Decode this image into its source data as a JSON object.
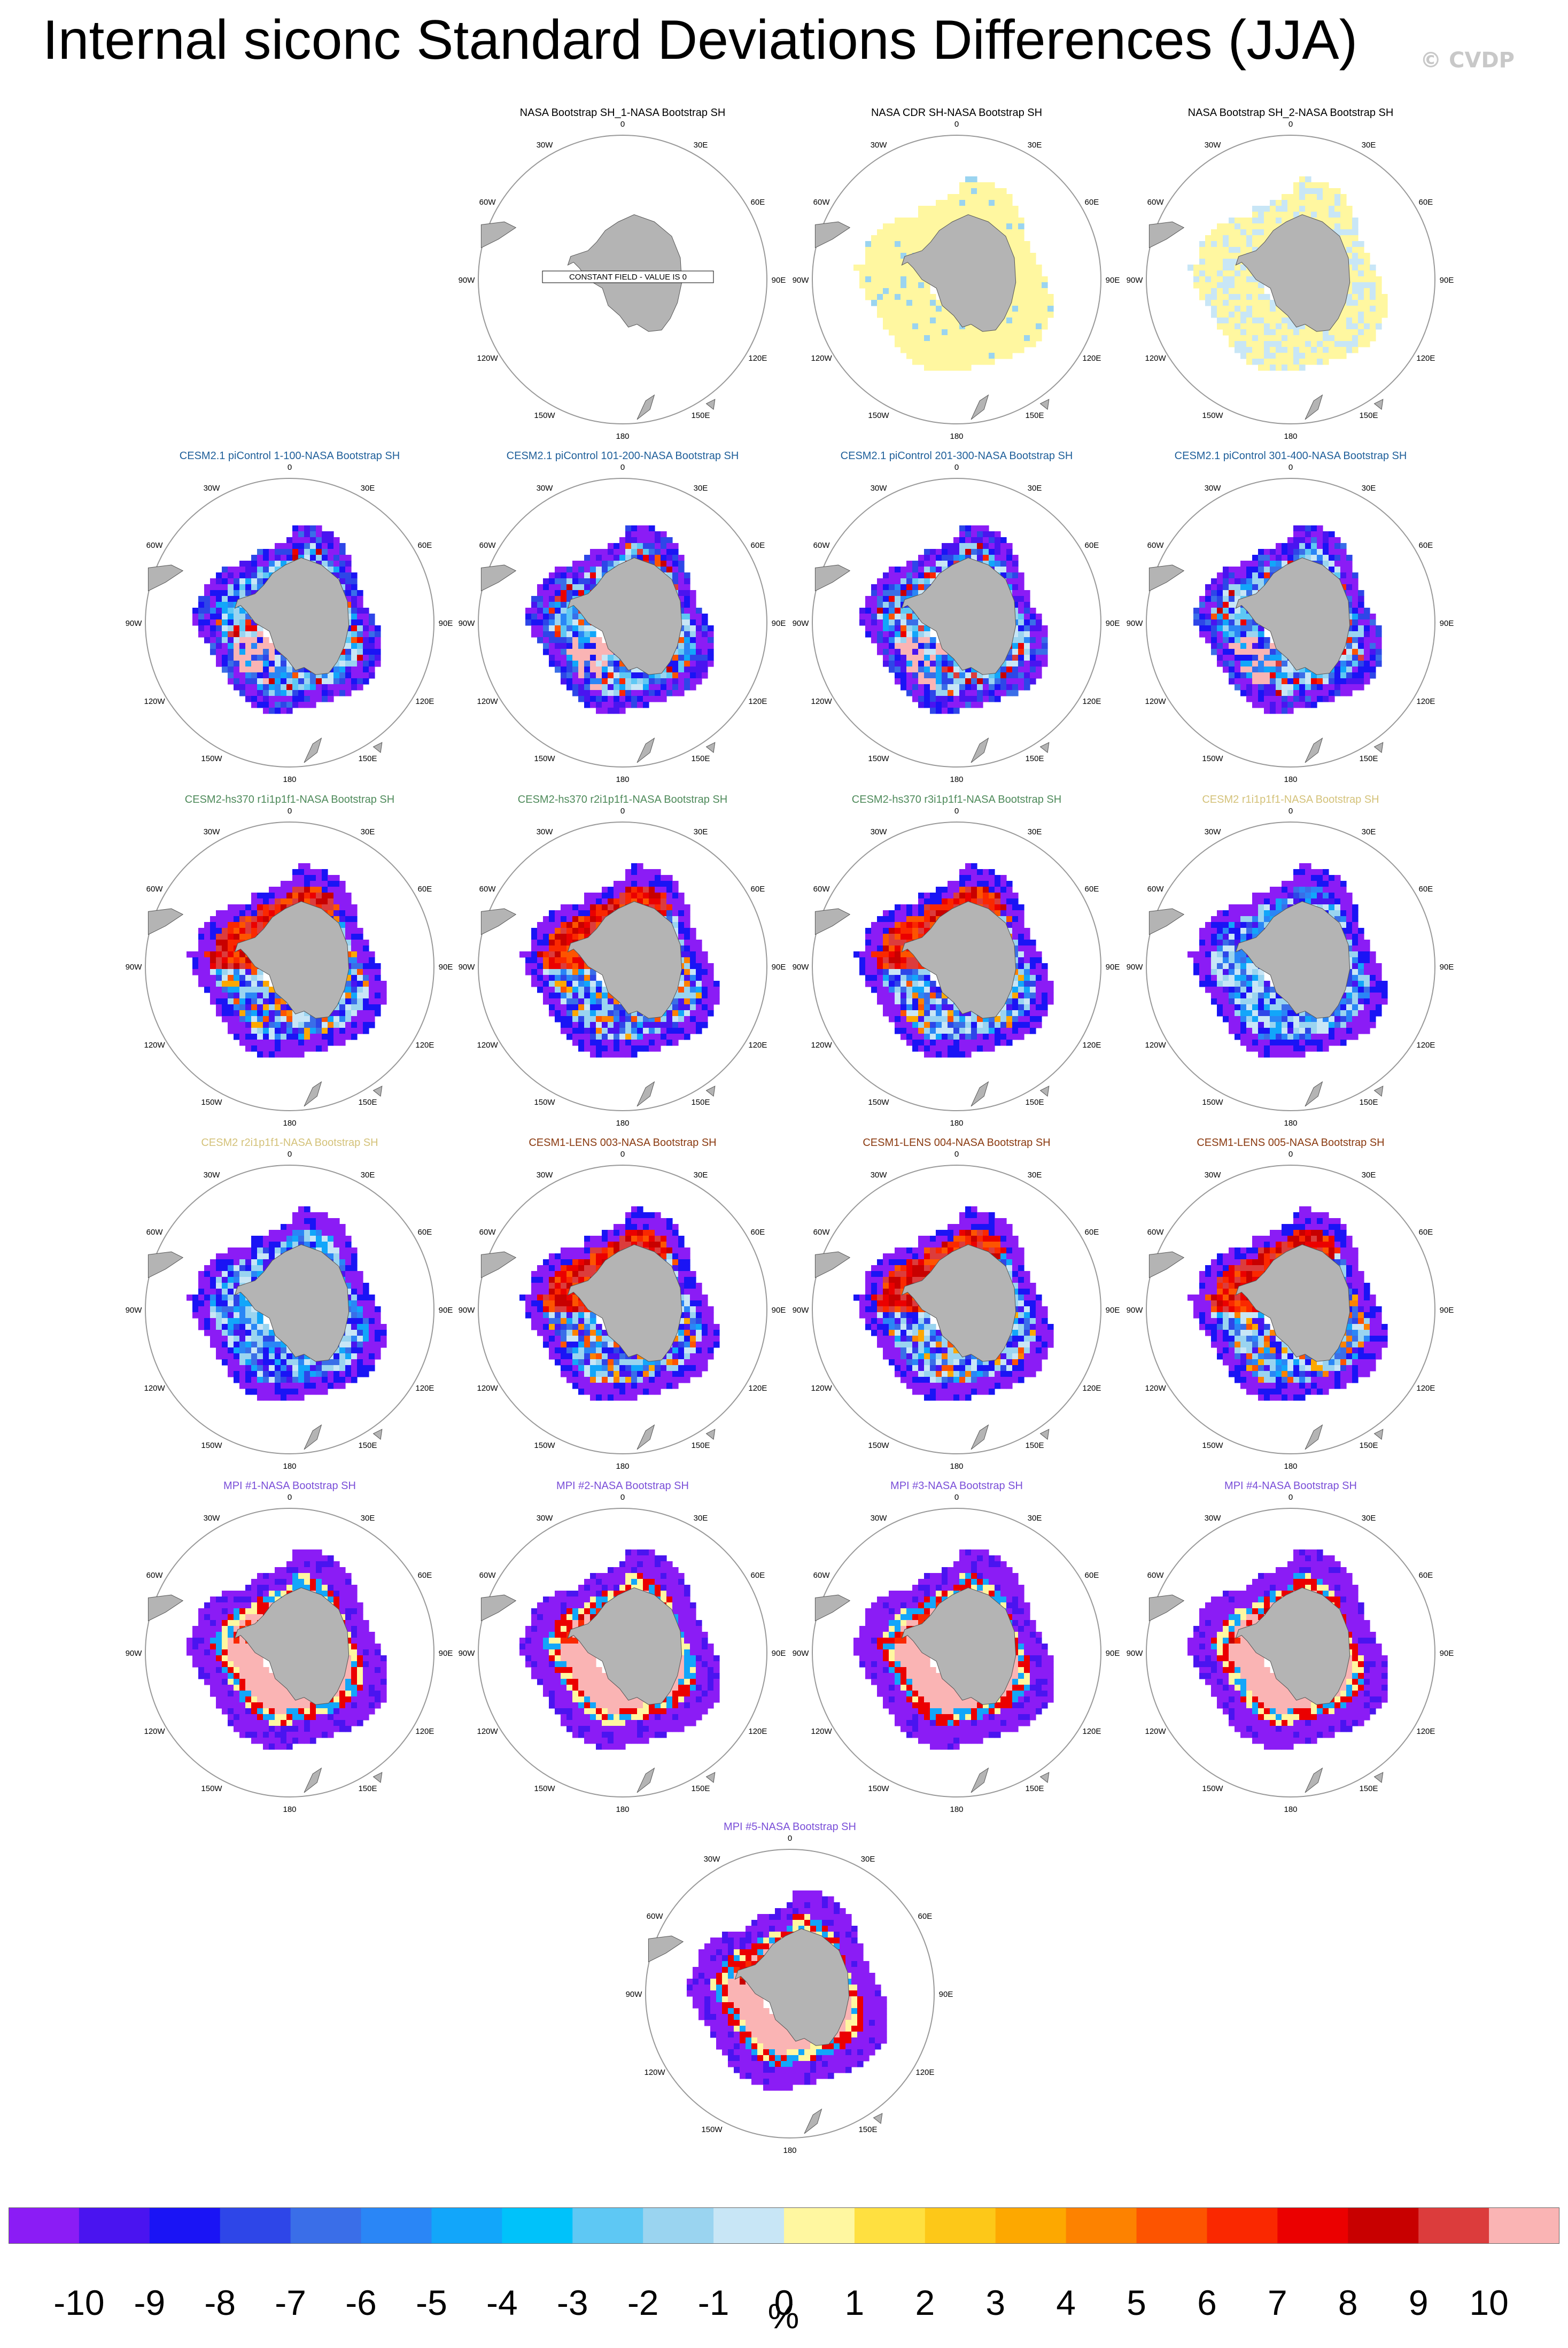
{
  "title": "Internal siconc Standard Deviations Differences (JJA)",
  "watermark": "© CVDP",
  "chart_data": {
    "type": "heatmap",
    "projection": "south-polar-stereographic",
    "season": "JJA",
    "variable": "siconc",
    "colorbar": {
      "unit": "%",
      "labels": [
        "-10",
        "-9",
        "-8",
        "-7",
        "-6",
        "-5",
        "-4",
        "-3",
        "-2",
        "-1",
        "0",
        "1",
        "2",
        "3",
        "4",
        "5",
        "6",
        "7",
        "8",
        "9",
        "10"
      ],
      "colors": [
        "#8B1CF5",
        "#4A14F0",
        "#1A14F5",
        "#2E46E8",
        "#3A6EE8",
        "#2A86F6",
        "#12A6FA",
        "#00C2FA",
        "#5EC8F4",
        "#9AD4F0",
        "#C8E6F6",
        "#FFF7A0",
        "#FFE040",
        "#FDC818",
        "#FDA800",
        "#FD8200",
        "#FD5400",
        "#FA2800",
        "#EB0000",
        "#C80000",
        "#DC3C3C",
        "#FAB4B4"
      ]
    },
    "lon_labels": [
      "0",
      "30E",
      "60E",
      "90E",
      "120E",
      "150E",
      "180",
      "150W",
      "120W",
      "90W",
      "60W",
      "30W"
    ],
    "panels": [
      {
        "title": "NASA Bootstrap SH_1-NASA Bootstrap SH",
        "title_color": "#000000",
        "note": "CONSTANT FIELD - VALUE IS 0",
        "pattern": "constant"
      },
      {
        "title": "NASA CDR SH-NASA Bootstrap SH",
        "title_color": "#000000",
        "pattern": "cdr"
      },
      {
        "title": "NASA Bootstrap SH_2-NASA Bootstrap SH",
        "title_color": "#000000",
        "pattern": "bs2"
      },
      {
        "title": "CESM2.1 piControl 1-100-NASA Bootstrap SH",
        "title_color": "#1F5F9A",
        "pattern": "pic"
      },
      {
        "title": "CESM2.1 piControl 101-200-NASA Bootstrap SH",
        "title_color": "#1F5F9A",
        "pattern": "pic"
      },
      {
        "title": "CESM2.1 piControl 201-300-NASA Bootstrap SH",
        "title_color": "#1F5F9A",
        "pattern": "pic"
      },
      {
        "title": "CESM2.1 piControl 301-400-NASA Bootstrap SH",
        "title_color": "#1F5F9A",
        "pattern": "pic"
      },
      {
        "title": "CESM2-hs370 r1i1p1f1-NASA Bootstrap SH",
        "title_color": "#4E8A5A",
        "pattern": "hs"
      },
      {
        "title": "CESM2-hs370 r2i1p1f1-NASA Bootstrap SH",
        "title_color": "#4E8A5A",
        "pattern": "hs"
      },
      {
        "title": "CESM2-hs370 r3i1p1f1-NASA Bootstrap SH",
        "title_color": "#4E8A5A",
        "pattern": "hs"
      },
      {
        "title": "CESM2 r1i1p1f1-NASA Bootstrap SH",
        "title_color": "#D4C27A",
        "pattern": "c2"
      },
      {
        "title": "CESM2 r2i1p1f1-NASA Bootstrap SH",
        "title_color": "#D4C27A",
        "pattern": "c2"
      },
      {
        "title": "CESM1-LENS 003-NASA Bootstrap SH",
        "title_color": "#8A3A10",
        "pattern": "lens"
      },
      {
        "title": "CESM1-LENS 004-NASA Bootstrap SH",
        "title_color": "#8A3A10",
        "pattern": "lens"
      },
      {
        "title": "CESM1-LENS 005-NASA Bootstrap SH",
        "title_color": "#8A3A10",
        "pattern": "lens"
      },
      {
        "title": "MPI #1-NASA Bootstrap SH",
        "title_color": "#7A4FD8",
        "pattern": "mpi"
      },
      {
        "title": "MPI #2-NASA Bootstrap SH",
        "title_color": "#7A4FD8",
        "pattern": "mpi"
      },
      {
        "title": "MPI #3-NASA Bootstrap SH",
        "title_color": "#7A4FD8",
        "pattern": "mpi"
      },
      {
        "title": "MPI #4-NASA Bootstrap SH",
        "title_color": "#7A4FD8",
        "pattern": "mpi"
      },
      {
        "title": "MPI #5-NASA Bootstrap SH",
        "title_color": "#7A4FD8",
        "pattern": "mpi"
      }
    ]
  }
}
